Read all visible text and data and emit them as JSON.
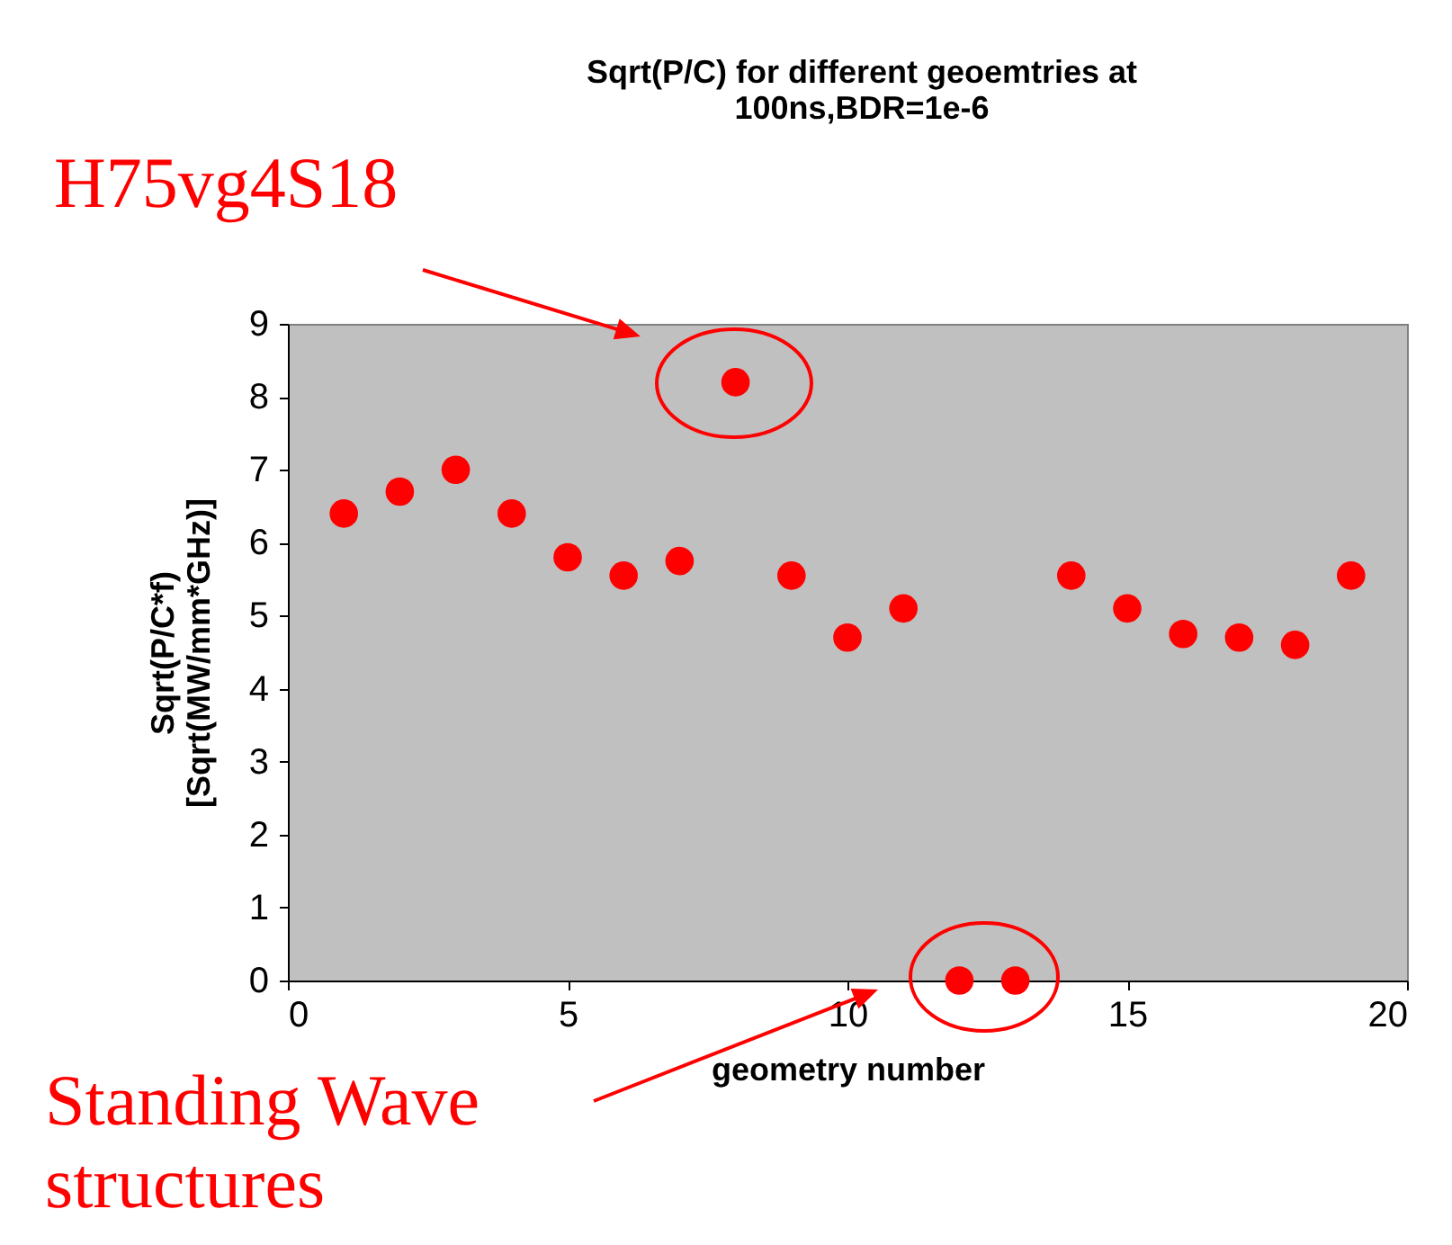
{
  "chart_data": {
    "type": "scatter",
    "title": "Sqrt(P/C) for different geoemtries at 100ns,BDR=1e-6",
    "xlabel": "geometry number",
    "ylabel": "Sqrt(P/C*f) [Sqrt(MW/mm*GHz)]",
    "x": [
      1,
      2,
      3,
      4,
      5,
      6,
      7,
      8,
      9,
      10,
      11,
      12,
      13,
      14,
      15,
      16,
      17,
      18,
      19
    ],
    "series": [
      {
        "color": "#ff0000",
        "values": [
          6.4,
          6.7,
          7.0,
          6.4,
          5.8,
          5.55,
          5.75,
          8.2,
          5.55,
          4.7,
          5.1,
          0,
          0,
          5.55,
          5.1,
          4.75,
          4.7,
          4.6,
          5.55
        ]
      }
    ],
    "xlim": [
      0,
      20
    ],
    "xticks": [
      0,
      5,
      10,
      15,
      20
    ],
    "ylim": [
      0,
      9
    ],
    "yticks": [
      0,
      1,
      2,
      3,
      4,
      5,
      6,
      7,
      8,
      9
    ],
    "grid": false,
    "marker": "circle",
    "annotations": [
      "H75vg4S18",
      "Standing Wave structures"
    ]
  }
}
